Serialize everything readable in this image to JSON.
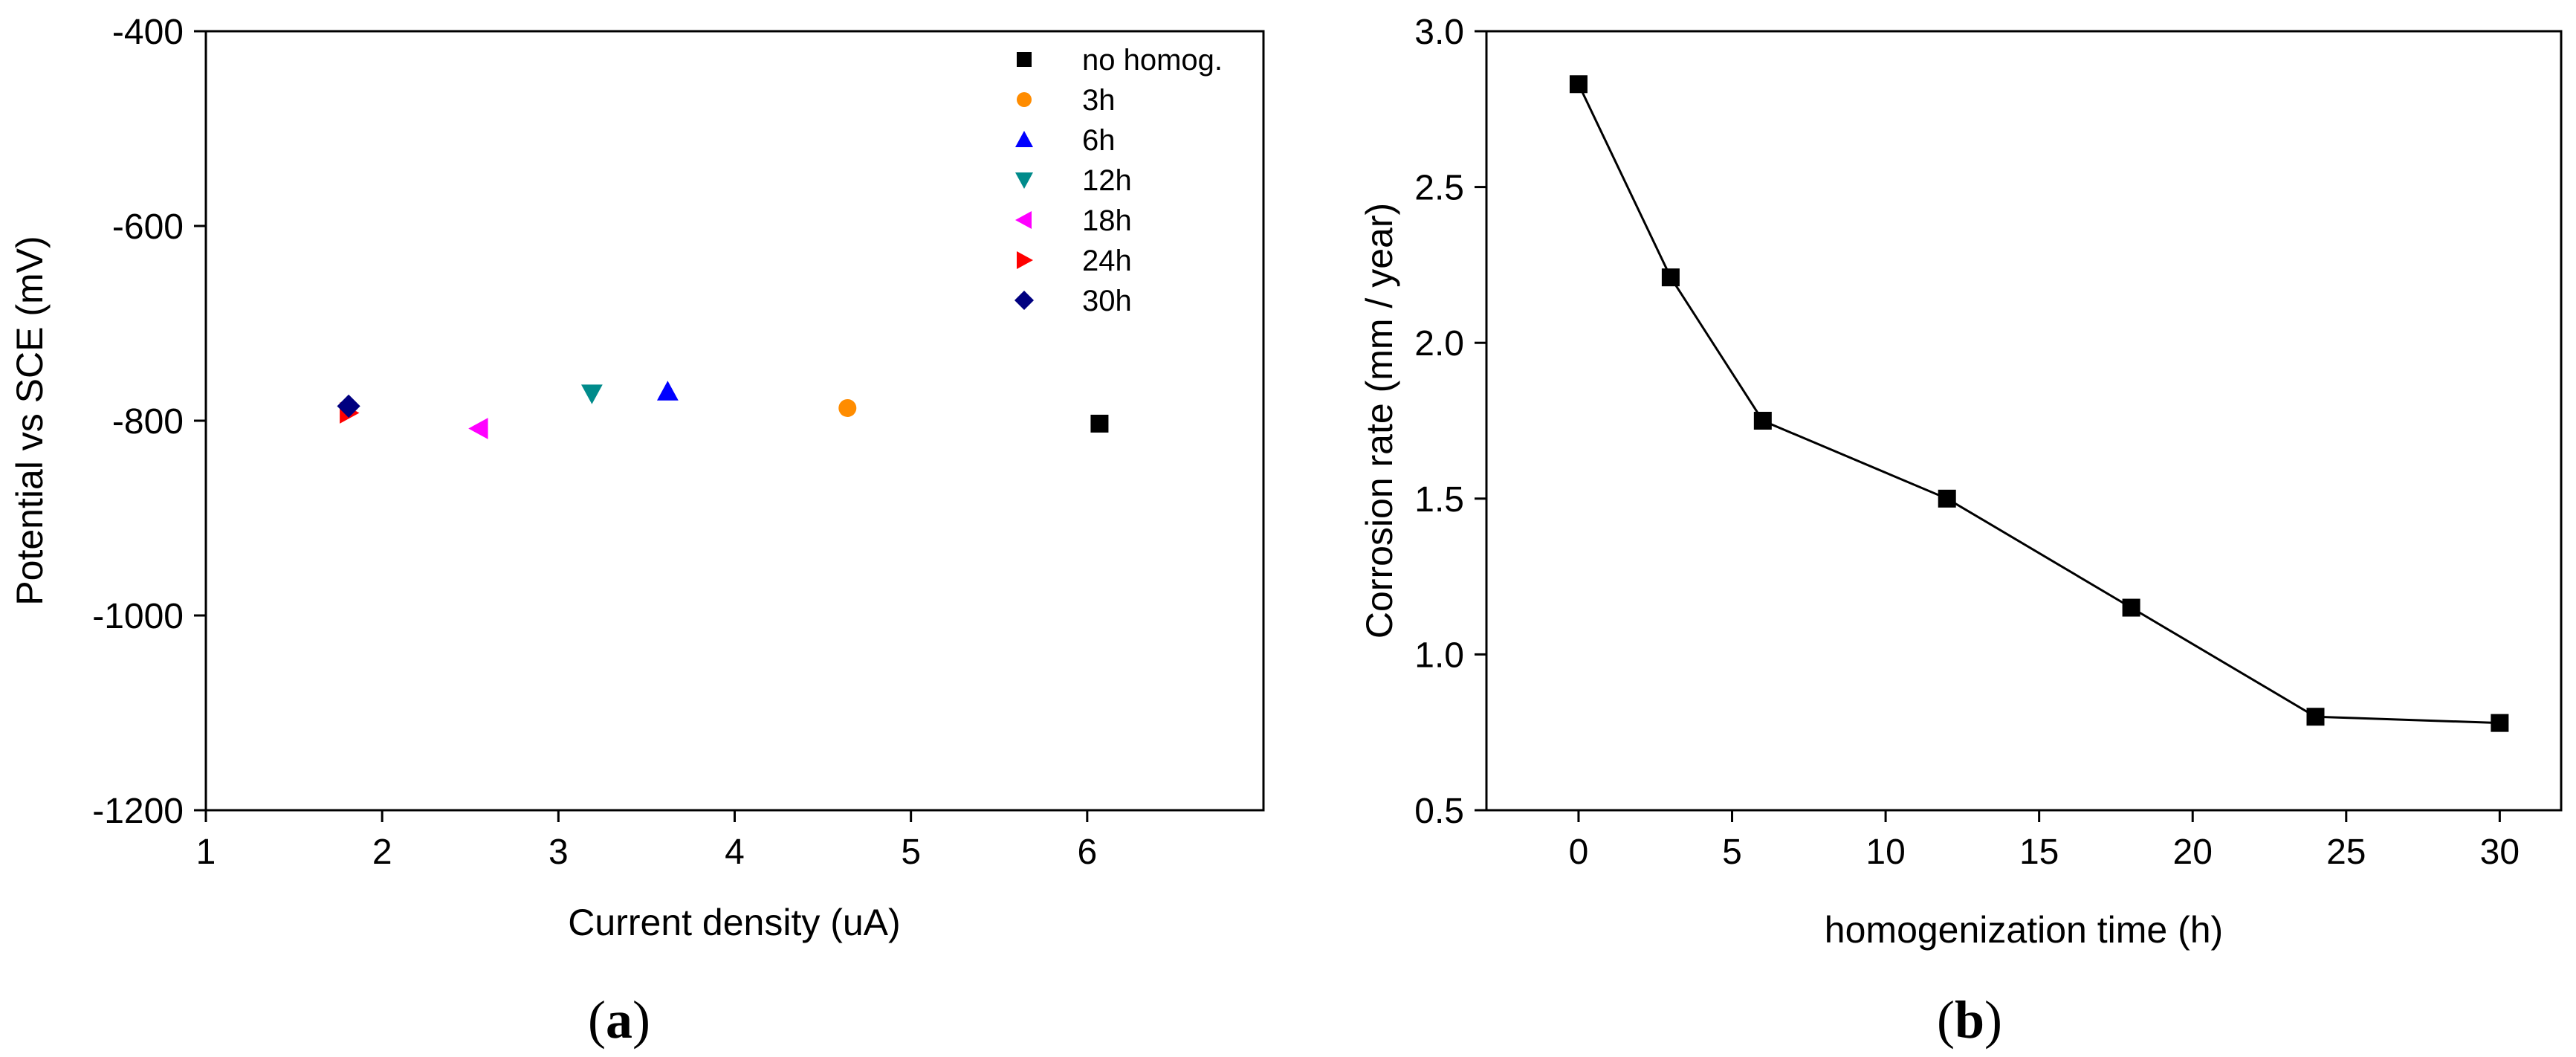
{
  "chart_data": [
    {
      "type": "scatter",
      "panel_label": "a",
      "title": "",
      "xlabel": "Current density (uA)",
      "ylabel": "Potential vs SCE (mV)",
      "xlim": [
        1,
        7
      ],
      "ylim": [
        -1200,
        -400
      ],
      "xticks": [
        1,
        2,
        3,
        4,
        5,
        6
      ],
      "yticks": [
        -1200,
        -1000,
        -800,
        -600,
        -400
      ],
      "grid": false,
      "legend_position": "top-right",
      "series": [
        {
          "name": "no homog.",
          "marker": "square",
          "color": "#000000",
          "x": [
            6.07
          ],
          "y": [
            -803
          ]
        },
        {
          "name": "3h",
          "marker": "circle",
          "color": "#ff8c00",
          "x": [
            4.64
          ],
          "y": [
            -787
          ]
        },
        {
          "name": "6h",
          "marker": "triangle-up",
          "color": "#0000ff",
          "x": [
            3.62
          ],
          "y": [
            -770
          ]
        },
        {
          "name": "12h",
          "marker": "triangle-down",
          "color": "#008b8b",
          "x": [
            3.19
          ],
          "y": [
            -772
          ]
        },
        {
          "name": "18h",
          "marker": "triangle-left",
          "color": "#ff00ff",
          "x": [
            2.55
          ],
          "y": [
            -808
          ]
        },
        {
          "name": "24h",
          "marker": "triangle-right",
          "color": "#ff0000",
          "x": [
            1.81
          ],
          "y": [
            -792
          ]
        },
        {
          "name": "30h",
          "marker": "diamond",
          "color": "#000080",
          "x": [
            1.81
          ],
          "y": [
            -785
          ]
        }
      ]
    },
    {
      "type": "line",
      "panel_label": "b",
      "title": "",
      "xlabel": "homogenization time (h)",
      "ylabel": "Corrosion rate (mm / year)",
      "xlim": [
        -3,
        32
      ],
      "ylim": [
        0.5,
        3.0
      ],
      "xticks": [
        0,
        5,
        10,
        15,
        20,
        25,
        30
      ],
      "yticks": [
        0.5,
        1.0,
        1.5,
        2.0,
        2.5,
        3.0
      ],
      "ytick_labels": [
        "0.5",
        "1.0",
        "1.5",
        "2.0",
        "2.5",
        "3.0"
      ],
      "grid": false,
      "series": [
        {
          "name": "corrosion rate",
          "marker": "square",
          "color": "#000000",
          "x": [
            0,
            3,
            6,
            12,
            18,
            24,
            30
          ],
          "y": [
            2.83,
            2.21,
            1.75,
            1.5,
            1.15,
            0.8,
            0.78
          ]
        }
      ]
    }
  ]
}
